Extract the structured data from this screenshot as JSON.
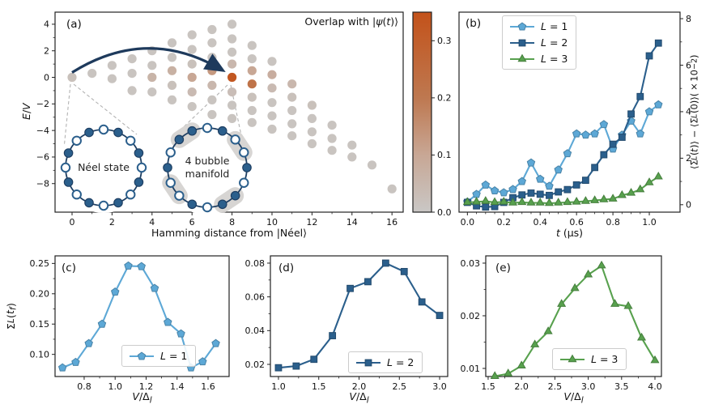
{
  "chart_data": [
    {
      "id": "a",
      "type": "scatter",
      "panel_label": "(a)",
      "title": "Overlap with |ψ(t)⟩",
      "title_html": "Overlap with |<i>ψ</i>(<i>t</i>)⟩",
      "xlabel": "Hamming distance from |Néel⟩",
      "xlabel_html": "Hamming distance from |Néel⟩",
      "ylabel": "E/V",
      "ylabel_html": "<i>E</i>/<i>V</i>",
      "xlim": [
        -0.85,
        16.56
      ],
      "ylim": [
        -10.15,
        4.91
      ],
      "xticks": [
        0,
        2,
        4,
        6,
        8,
        10,
        12,
        14,
        16
      ],
      "xticklabels": [
        "0",
        "2",
        "4",
        "6",
        "8",
        "10",
        "12",
        "14",
        "16"
      ],
      "yticks": [
        4,
        2,
        0,
        -2,
        -4,
        -6,
        -8
      ],
      "yticklabels": [
        "4",
        "2",
        "0",
        "−2",
        "−4",
        "−6",
        "−8"
      ],
      "grid": false,
      "colormap_stops": [
        [
          0.0,
          "#c9c7c5"
        ],
        [
          0.1,
          "#c8a795"
        ],
        [
          0.2,
          "#be7850"
        ],
        [
          0.35,
          "#c3521a"
        ]
      ],
      "points": [
        [
          0,
          0,
          0.02
        ],
        [
          1,
          0.3,
          0.01
        ],
        [
          2,
          0.9,
          0.01
        ],
        [
          2,
          -0.1,
          0.01
        ],
        [
          3,
          1.4,
          0.01
        ],
        [
          3,
          0.3,
          0.01
        ],
        [
          3,
          -1,
          0.01
        ],
        [
          4,
          2,
          0.01
        ],
        [
          4,
          0.9,
          0.01
        ],
        [
          4,
          0,
          0.06
        ],
        [
          4,
          -1.1,
          0.01
        ],
        [
          5,
          2.6,
          0.01
        ],
        [
          5,
          1.5,
          0.01
        ],
        [
          5,
          0.5,
          0.07
        ],
        [
          5,
          -0.6,
          0.02
        ],
        [
          5,
          -1.7,
          0.01
        ],
        [
          6,
          3.2,
          0.01
        ],
        [
          6,
          2.1,
          0.01
        ],
        [
          6,
          1,
          0.02
        ],
        [
          6,
          0,
          0.1
        ],
        [
          6,
          -1.1,
          0.04
        ],
        [
          6,
          -2.2,
          0.01
        ],
        [
          7,
          3.6,
          0.01
        ],
        [
          7,
          2.6,
          0.01
        ],
        [
          7,
          1.5,
          0.01
        ],
        [
          7,
          0.5,
          0.13
        ],
        [
          7,
          -0.6,
          0.05
        ],
        [
          7,
          -1.7,
          0.01
        ],
        [
          7,
          -2.8,
          0.01
        ],
        [
          8,
          4,
          0.01
        ],
        [
          8,
          2.9,
          0.01
        ],
        [
          8,
          1.9,
          0.01
        ],
        [
          8,
          1,
          0.05
        ],
        [
          8,
          0,
          0.33
        ],
        [
          8,
          -1.1,
          0.03
        ],
        [
          8,
          -2.1,
          0.01
        ],
        [
          8,
          -3.1,
          0.01
        ],
        [
          9,
          2.4,
          0.01
        ],
        [
          9,
          1.4,
          0.01
        ],
        [
          9,
          0.5,
          0.1
        ],
        [
          9,
          -0.5,
          0.22
        ],
        [
          9,
          -1.5,
          0.02
        ],
        [
          9,
          -2.5,
          0.01
        ],
        [
          9,
          -3.4,
          0.01
        ],
        [
          10,
          1.2,
          0.01
        ],
        [
          10,
          0.2,
          0.08
        ],
        [
          10,
          -0.8,
          0.04
        ],
        [
          10,
          -1.9,
          0.01
        ],
        [
          10,
          -2.9,
          0.01
        ],
        [
          10,
          -3.9,
          0.01
        ],
        [
          11,
          -0.5,
          0.05
        ],
        [
          11,
          -1.5,
          0.02
        ],
        [
          11,
          -2.5,
          0.01
        ],
        [
          11,
          -3.5,
          0.01
        ],
        [
          11,
          -4.4,
          0.01
        ],
        [
          12,
          -2.1,
          0.02
        ],
        [
          12,
          -3.1,
          0.01
        ],
        [
          12,
          -4.1,
          0.01
        ],
        [
          12,
          -5,
          0.01
        ],
        [
          13,
          -3.6,
          0.01
        ],
        [
          13,
          -4.6,
          0.01
        ],
        [
          13,
          -5.5,
          0.01
        ],
        [
          14,
          -5.1,
          0.01
        ],
        [
          14,
          -6,
          0.01
        ],
        [
          15,
          -6.6,
          0.01
        ],
        [
          16,
          -8.4,
          0.01
        ]
      ],
      "arrow": {
        "from": [
          0,
          0
        ],
        "to": [
          8,
          0
        ],
        "color": "#1e3a5c"
      },
      "insets": [
        {
          "label": "Néel state",
          "pattern": "0101010101010101",
          "capsules": []
        },
        {
          "label": "4 bubble\nmanifold",
          "pattern": "0100101101001011",
          "capsules": [
            [
              2,
              3
            ],
            [
              6,
              7
            ],
            [
              10,
              11
            ],
            [
              14,
              15
            ]
          ]
        }
      ]
    },
    {
      "id": "cbar",
      "type": "colorbar",
      "range": [
        0,
        0.35
      ],
      "ticks": [
        0,
        0.1,
        0.2,
        0.3
      ],
      "ticklabels": [
        "0.0",
        "0.1",
        "0.2",
        "0.3"
      ],
      "stops": [
        [
          0.0,
          "#c9c7c5"
        ],
        [
          0.1,
          "#c8a795"
        ],
        [
          0.2,
          "#be7850"
        ],
        [
          0.35,
          "#c3521a"
        ]
      ]
    },
    {
      "id": "b",
      "type": "line",
      "panel_label": "(b)",
      "xlabel": "t (μs)",
      "xlabel_html": "<i>t</i> (μs)",
      "ylabel": "⟨ΣL(t)⟩ − ⟨ΣL(0)⟩(×10⁻²)",
      "ylabel_html": "⟨Σ<sub><i>L</i></sub>(<i>t</i>)⟩ − ⟨Σ<sub><i>L</i></sub>(0)⟩(×10<sup>−2</sup>)",
      "xlim": [
        -0.046,
        1.169
      ],
      "ylim": [
        -0.32,
        8.28
      ],
      "xticks": [
        0,
        0.2,
        0.4,
        0.6,
        0.8,
        1.0
      ],
      "xticklabels": [
        "0.0",
        "0.2",
        "0.4",
        "0.6",
        "0.8",
        "1.0"
      ],
      "xminor_n": 3,
      "yticks": [
        0,
        2,
        4,
        6,
        8
      ],
      "yticklabels": [
        "0",
        "2",
        "4",
        "6",
        "8"
      ],
      "ytick_side": "right",
      "legend_loc": "upper left",
      "x": [
        0,
        0.05,
        0.1,
        0.15,
        0.2,
        0.25,
        0.3,
        0.35,
        0.4,
        0.45,
        0.5,
        0.55,
        0.6,
        0.65,
        0.7,
        0.75,
        0.8,
        0.85,
        0.9,
        0.95,
        1.0,
        1.05
      ],
      "series": [
        {
          "name": "L = 1",
          "name_html": "<i>L</i> = 1",
          "color": "#5da8d6",
          "marker": "pentagon",
          "values": [
            0.12,
            0.45,
            0.85,
            0.6,
            0.52,
            0.66,
            1.0,
            1.8,
            1.1,
            0.8,
            1.5,
            2.2,
            3.05,
            3.0,
            3.05,
            3.45,
            2.4,
            3.0,
            3.6,
            3.05,
            4.0,
            4.3
          ]
        },
        {
          "name": "L = 2",
          "name_html": "<i>L</i> = 2",
          "color": "#2b5f8c",
          "marker": "square",
          "values": [
            0.1,
            -0.05,
            -0.1,
            -0.08,
            0.1,
            0.3,
            0.42,
            0.5,
            0.45,
            0.4,
            0.55,
            0.65,
            0.85,
            1.05,
            1.6,
            2.15,
            2.6,
            2.9,
            3.9,
            4.65,
            6.4,
            6.95
          ]
        },
        {
          "name": "L = 3",
          "name_html": "<i>L</i> = 3",
          "color": "#58a14e",
          "marker": "triangle",
          "values": [
            0.1,
            0.12,
            0.15,
            0.1,
            0.12,
            0.08,
            0.1,
            0.08,
            0.08,
            0.06,
            0.08,
            0.1,
            0.12,
            0.15,
            0.18,
            0.22,
            0.25,
            0.4,
            0.5,
            0.65,
            0.95,
            1.2
          ]
        }
      ]
    },
    {
      "id": "c",
      "type": "line",
      "panel_label": "(c)",
      "xlabel": "V/Δl",
      "xlabel_html": "<i>V</i>/Δ<sub><i>l</i></sub>",
      "ylabel": "ΣL(tf)",
      "ylabel_html": "Σ<sub><i>L</i></sub>(<i>t<sub>f</sub></i>)",
      "xlim": [
        0.612,
        1.736
      ],
      "ylim": [
        0.0635,
        0.2625
      ],
      "xticks": [
        0.8,
        1.0,
        1.2,
        1.4,
        1.6
      ],
      "xticklabels": [
        "0.8",
        "1.0",
        "1.2",
        "1.4",
        "1.6"
      ],
      "yticks": [
        0.1,
        0.15,
        0.2,
        0.25
      ],
      "yticklabels": [
        "0.10",
        "0.15",
        "0.20",
        "0.25"
      ],
      "legend_loc": "lower center",
      "x": [
        0.66,
        0.745,
        0.83,
        0.915,
        1.0,
        1.085,
        1.17,
        1.255,
        1.34,
        1.425,
        1.49,
        1.565,
        1.65
      ],
      "series": [
        {
          "name": "L = 1",
          "name_html": "<i>L</i> = 1",
          "color": "#5da8d6",
          "marker": "pentagon",
          "values": [
            0.078,
            0.087,
            0.118,
            0.15,
            0.203,
            0.246,
            0.245,
            0.209,
            0.153,
            0.134,
            0.078,
            0.088,
            0.118
          ]
        }
      ]
    },
    {
      "id": "d",
      "type": "line",
      "panel_label": "(d)",
      "xlabel": "V/Δl",
      "xlabel_html": "<i>V</i>/Δ<sub><i>l</i></sub>",
      "xlim": [
        0.9,
        3.1
      ],
      "ylim": [
        0.0128,
        0.0843
      ],
      "xticks": [
        1.0,
        1.5,
        2.0,
        2.5,
        3.0
      ],
      "xticklabels": [
        "1.0",
        "1.5",
        "2.0",
        "2.5",
        "3.0"
      ],
      "yticks": [
        0.02,
        0.04,
        0.06,
        0.08
      ],
      "yticklabels": [
        "0.02",
        "0.04",
        "0.06",
        "0.08"
      ],
      "legend_loc": "lower center",
      "x": [
        1.0,
        1.22,
        1.44,
        1.67,
        1.89,
        2.11,
        2.33,
        2.56,
        2.78,
        3.0
      ],
      "series": [
        {
          "name": "L = 2",
          "name_html": "<i>L</i> = 2",
          "color": "#2b5f8c",
          "marker": "square",
          "values": [
            0.018,
            0.019,
            0.023,
            0.037,
            0.065,
            0.069,
            0.08,
            0.075,
            0.057,
            0.049
          ]
        }
      ]
    },
    {
      "id": "e",
      "type": "line",
      "panel_label": "(e)",
      "xlabel": "V/Δl",
      "xlabel_html": "<i>V</i>/Δ<sub><i>l</i></sub>",
      "xlim": [
        1.464,
        4.097
      ],
      "ylim": [
        0.00846,
        0.03138
      ],
      "xticks": [
        1.5,
        2.0,
        2.5,
        3.0,
        3.5,
        4.0
      ],
      "xticklabels": [
        "1.5",
        "2.0",
        "2.5",
        "3.0",
        "3.5",
        "4.0"
      ],
      "yticks": [
        0.01,
        0.02,
        0.03
      ],
      "yticklabels": [
        "0.01",
        "0.02",
        "0.03"
      ],
      "legend_loc": "lower center",
      "x": [
        1.6,
        1.8,
        2.0,
        2.2,
        2.4,
        2.6,
        2.8,
        3.0,
        3.2,
        3.4,
        3.6,
        3.8,
        4.0
      ],
      "series": [
        {
          "name": "L = 3",
          "name_html": "<i>L</i> = 3",
          "color": "#58a14e",
          "marker": "triangle",
          "values": [
            0.0085,
            0.009,
            0.0105,
            0.0145,
            0.017,
            0.0222,
            0.0252,
            0.0278,
            0.0295,
            0.0222,
            0.0218,
            0.0158,
            0.0115
          ]
        }
      ]
    }
  ]
}
